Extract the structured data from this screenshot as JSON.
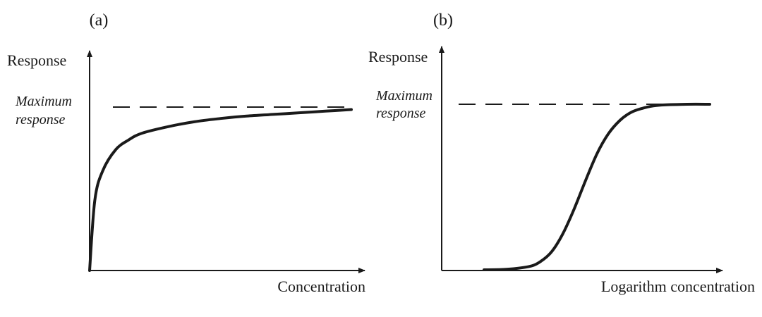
{
  "chart_data": [
    {
      "type": "line",
      "panel_label": "(a)",
      "ylabel": "Response",
      "xlabel": "Concentration",
      "annotation_line1": "Maximum",
      "annotation_line2": "response",
      "max_response": 1.0,
      "x": [
        0,
        0.02,
        0.05,
        0.1,
        0.15,
        0.2,
        0.3,
        0.4,
        0.5,
        0.6,
        0.7,
        0.8,
        0.9,
        1.0
      ],
      "values": [
        0,
        0.43,
        0.61,
        0.74,
        0.8,
        0.84,
        0.88,
        0.91,
        0.93,
        0.945,
        0.955,
        0.965,
        0.975,
        0.985
      ]
    },
    {
      "type": "line",
      "panel_label": "(b)",
      "ylabel": "Response",
      "xlabel": "Logarithm concentration",
      "annotation_line1": "Maximum",
      "annotation_line2": "response",
      "max_response": 1.0,
      "x": [
        0,
        0.1,
        0.2,
        0.25,
        0.3,
        0.35,
        0.4,
        0.45,
        0.5,
        0.55,
        0.6,
        0.65,
        0.7,
        0.75,
        0.8,
        0.9,
        1.0
      ],
      "values": [
        0,
        0.003,
        0.02,
        0.05,
        0.11,
        0.22,
        0.37,
        0.54,
        0.7,
        0.82,
        0.9,
        0.95,
        0.975,
        0.99,
        0.996,
        1.0,
        1.0
      ]
    }
  ]
}
